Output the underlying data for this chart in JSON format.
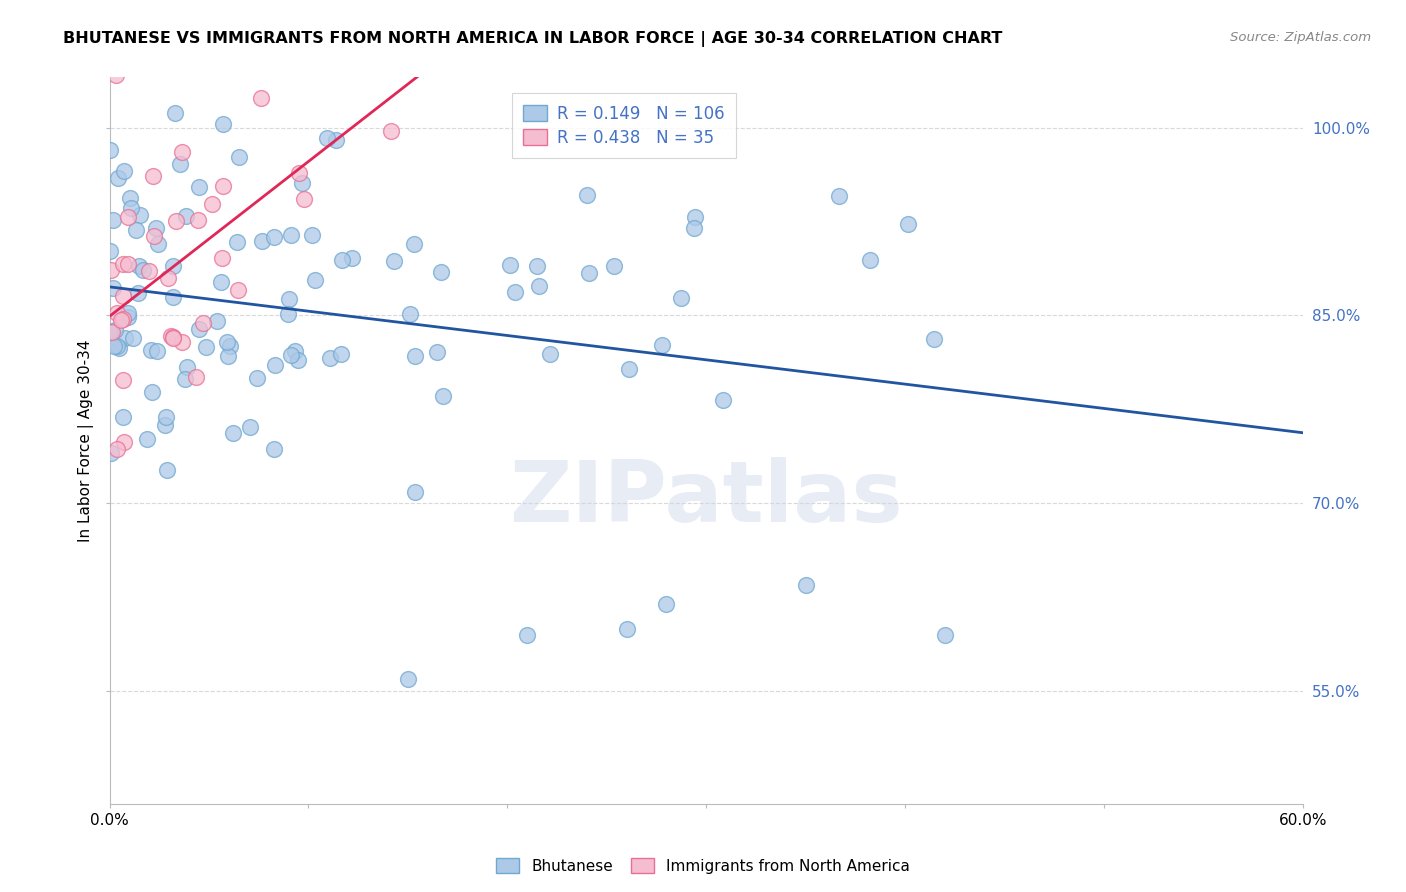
{
  "title": "BHUTANESE VS IMMIGRANTS FROM NORTH AMERICA IN LABOR FORCE | AGE 30-34 CORRELATION CHART",
  "source": "Source: ZipAtlas.com",
  "ylabel": "In Labor Force | Age 30-34",
  "xlim": [
    0.0,
    0.6
  ],
  "ylim": [
    0.46,
    1.04
  ],
  "blue_color": "#adc9e8",
  "blue_edge": "#6fa8d0",
  "pink_color": "#f5bdd0",
  "pink_edge": "#e87095",
  "trend_blue": "#2255a0",
  "trend_pink": "#e02858",
  "R_blue": 0.149,
  "N_blue": 106,
  "R_pink": 0.438,
  "N_pink": 35,
  "watermark": "ZIPatlas",
  "legend_blue_label": "Bhutanese",
  "legend_pink_label": "Immigrants from North America",
  "background_color": "#ffffff",
  "grid_color": "#d0d0d0",
  "ytick_color": "#4472c4",
  "yticks": [
    0.55,
    0.7,
    0.85,
    1.0
  ],
  "ytick_labels": [
    "55.0%",
    "70.0%",
    "85.0%",
    "100.0%"
  ],
  "xticks": [
    0.0,
    0.1,
    0.2,
    0.3,
    0.4,
    0.5,
    0.6
  ],
  "xticklabels": [
    "0.0%",
    "",
    "",
    "",
    "",
    "",
    "60.0%"
  ]
}
